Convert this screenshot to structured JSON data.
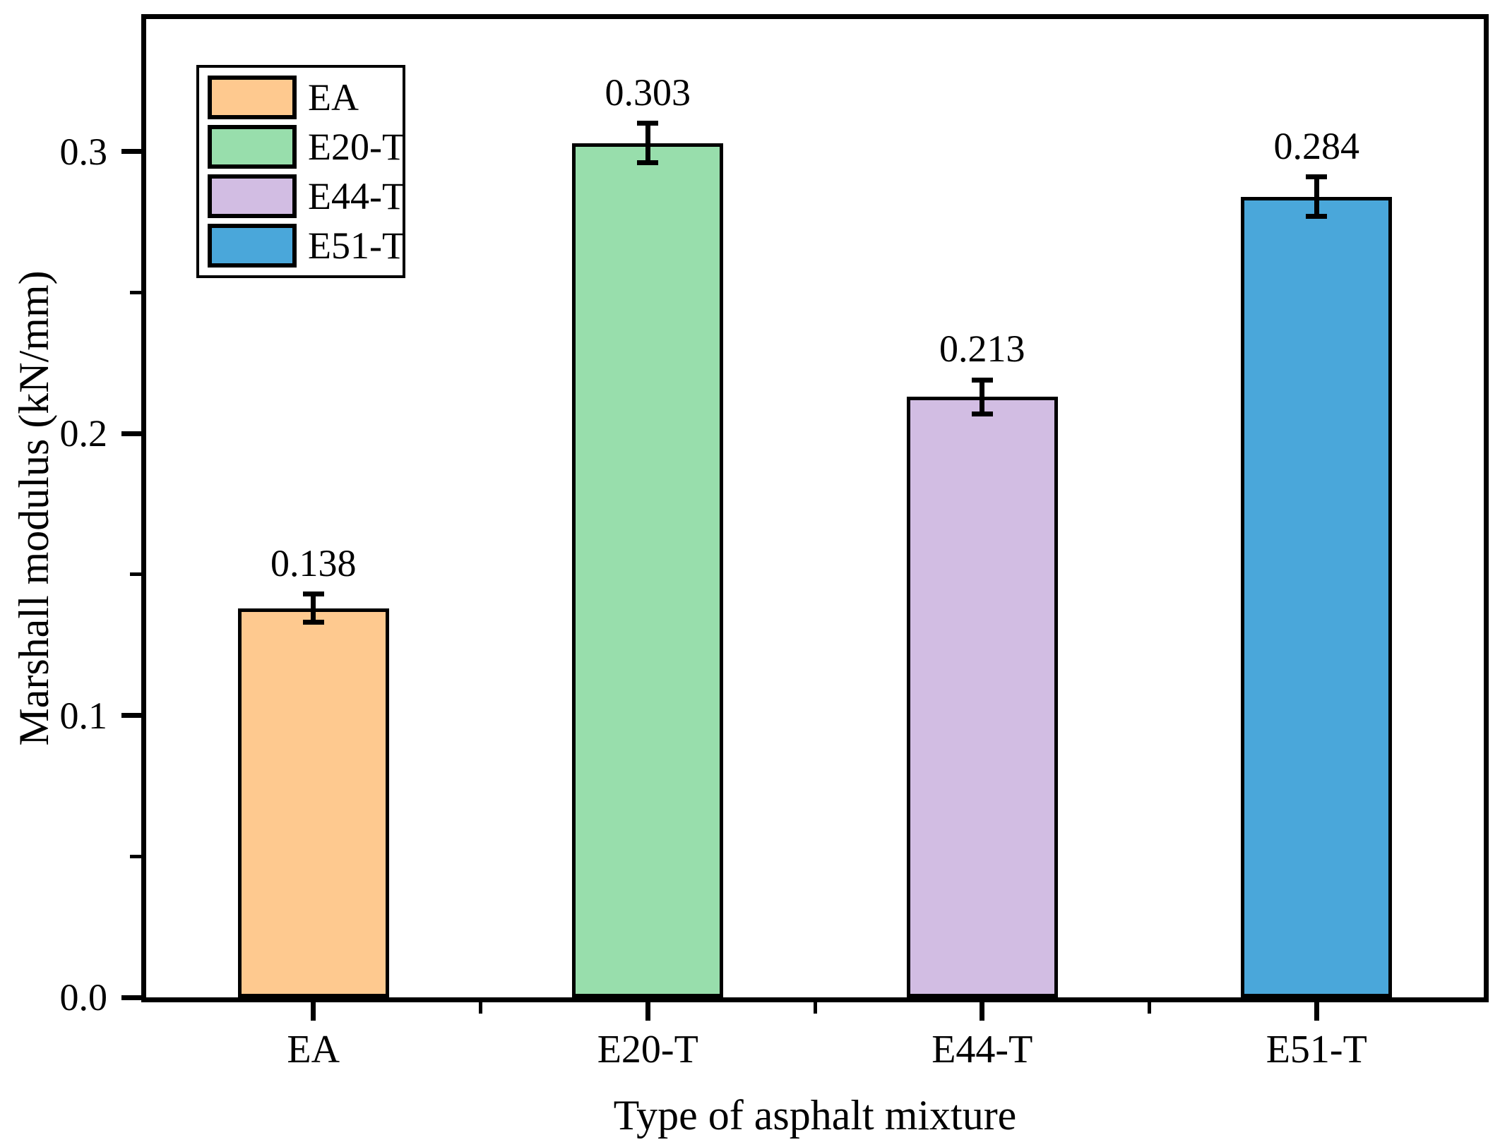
{
  "chart_data": {
    "type": "bar",
    "title": "",
    "xlabel": "Type of asphalt mixture",
    "ylabel": "Marshall modulus (kN/mm)",
    "categories": [
      "EA",
      "E20-T",
      "E44-T",
      "E51-T"
    ],
    "values": [
      0.138,
      0.303,
      0.213,
      0.284
    ],
    "errors": [
      0.005,
      0.007,
      0.006,
      0.007
    ],
    "value_labels": [
      "0.138",
      "0.303",
      "0.213",
      "0.284"
    ],
    "bar_colors": [
      "#FEC98F",
      "#98DEAC",
      "#D2BDE3",
      "#4AA7DA"
    ],
    "bar_border_color": "#000000",
    "axis_color": "#000000",
    "ylim": [
      0,
      0.347
    ],
    "yticks": [
      {
        "value": 0.0,
        "label": "0.0"
      },
      {
        "value": 0.1,
        "label": "0.1"
      },
      {
        "value": 0.2,
        "label": "0.2"
      },
      {
        "value": 0.3,
        "label": "0.3"
      }
    ],
    "yticks_minor": [
      0.05,
      0.15,
      0.25
    ],
    "grid": false,
    "legend": {
      "position": "top-left",
      "entries": [
        {
          "label": "EA",
          "color": "#FEC98F"
        },
        {
          "label": "E20-T",
          "color": "#98DEAC"
        },
        {
          "label": "E44-T",
          "color": "#D2BDE3"
        },
        {
          "label": "E51-T",
          "color": "#4AA7DA"
        }
      ]
    }
  }
}
